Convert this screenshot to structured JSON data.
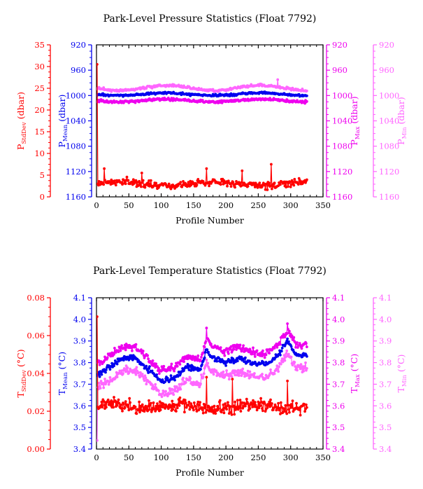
{
  "colors": {
    "stddev": "#ff0000",
    "mean": "#0000ee",
    "max": "#ee00ee",
    "min": "#ff66ff",
    "axis": "#000000"
  },
  "chart_data": [
    {
      "type": "line",
      "title": "Park-Level Pressure Statistics (Float 7792)",
      "xlabel": "Profile Number",
      "xlim": [
        0,
        350
      ],
      "xticks": [
        "0",
        "50",
        "100",
        "150",
        "200",
        "250",
        "300",
        "350"
      ],
      "axes": {
        "stddev": {
          "label_main": "P",
          "label_sub": "StdDev",
          "label_unit": " (dbar)",
          "ticks": [
            "35",
            "30",
            "25",
            "20",
            "15",
            "10",
            "5",
            "0"
          ]
        },
        "mean": {
          "label_main": "P",
          "label_sub": "Mean",
          "label_unit": " (dbar)",
          "ticks": [
            "920",
            "960",
            "1000",
            "1040",
            "1080",
            "1120",
            "1160"
          ]
        },
        "max": {
          "label_main": "P",
          "label_sub": "Max",
          "label_unit": " (dbar)",
          "ticks": [
            "920",
            "960",
            "1000",
            "1040",
            "1080",
            "1120",
            "1160"
          ]
        },
        "min": {
          "label_main": "P",
          "label_sub": "Min",
          "label_unit": " (dbar)",
          "ticks": [
            "920",
            "960",
            "1000",
            "1040",
            "1080",
            "1120",
            "1160"
          ]
        }
      },
      "ranges": {
        "stddev": [
          0,
          35
        ],
        "mean": [
          1160,
          920
        ],
        "max": [
          1160,
          920
        ],
        "min": [
          1160,
          920
        ]
      },
      "series": [
        {
          "key": "min",
          "n": 325,
          "base": 988,
          "amp": 4,
          "noise": 3,
          "first": 990,
          "spikes": [
            [
              280,
              975
            ]
          ]
        },
        {
          "key": "max",
          "n": 325,
          "base": 1008,
          "amp": 2,
          "noise": 3,
          "first": 1010,
          "spikes": []
        },
        {
          "key": "mean",
          "n": 325,
          "base": 998,
          "amp": 2,
          "noise": 2.5,
          "first": 1000,
          "spikes": []
        },
        {
          "key": "stddev",
          "n": 325,
          "base": 3,
          "amp": 0.5,
          "noise": 1.2,
          "first": 30.5,
          "spikes": [
            [
              2,
              3
            ],
            [
              12,
              6.5
            ],
            [
              70,
              5.5
            ],
            [
              170,
              6.5
            ],
            [
              225,
              6
            ],
            [
              270,
              7.5
            ]
          ]
        }
      ]
    },
    {
      "type": "line",
      "title": "Park-Level Temperature Statistics (Float 7792)",
      "xlabel": "Profile Number",
      "xlim": [
        0,
        350
      ],
      "xticks": [
        "0",
        "50",
        "100",
        "150",
        "200",
        "250",
        "300",
        "350"
      ],
      "axes": {
        "stddev": {
          "label_main": "T",
          "label_sub": "StdDev",
          "label_unit": " (°C)",
          "ticks": [
            "0.08",
            "0.06",
            "0.04",
            "0.02",
            "0.00"
          ]
        },
        "mean": {
          "label_main": "T",
          "label_sub": "Mean",
          "label_unit": " (°C)",
          "ticks": [
            "4.1",
            "4.0",
            "3.9",
            "3.8",
            "3.7",
            "3.6",
            "3.5",
            "3.4"
          ]
        },
        "max": {
          "label_main": "T",
          "label_sub": "Max",
          "label_unit": " (°C)",
          "ticks": [
            "4.1",
            "4.0",
            "3.9",
            "3.8",
            "3.7",
            "3.6",
            "3.5",
            "3.4"
          ]
        },
        "min": {
          "label_main": "T",
          "label_sub": "Min",
          "label_unit": " (°C)",
          "ticks": [
            "4.1",
            "4.0",
            "3.9",
            "3.8",
            "3.7",
            "3.6",
            "3.5",
            "3.4"
          ]
        }
      },
      "ranges": {
        "stddev": [
          0,
          0.08
        ],
        "mean": [
          3.4,
          4.1
        ],
        "max": [
          3.4,
          4.1
        ],
        "min": [
          3.4,
          4.1
        ]
      },
      "profile": {
        "x": [
          0,
          20,
          40,
          60,
          80,
          100,
          120,
          140,
          160,
          170,
          180,
          200,
          220,
          240,
          260,
          280,
          295,
          310,
          325
        ],
        "y": [
          3.74,
          3.78,
          3.82,
          3.82,
          3.77,
          3.71,
          3.73,
          3.78,
          3.76,
          3.86,
          3.82,
          3.8,
          3.82,
          3.8,
          3.79,
          3.83,
          3.9,
          3.83,
          3.84
        ]
      },
      "series": [
        {
          "key": "min",
          "n": 325,
          "offset": -0.06,
          "noise": 0.03,
          "first": 3.44,
          "spikes": []
        },
        {
          "key": "max",
          "n": 325,
          "offset": 0.05,
          "noise": 0.025,
          "first": 3.8,
          "spikes": [
            [
              170,
              3.96
            ],
            [
              295,
              3.98
            ]
          ]
        },
        {
          "key": "mean",
          "n": 325,
          "offset": 0,
          "noise": 0.02,
          "first": 3.74,
          "spikes": []
        },
        {
          "key": "stddev",
          "n": 325,
          "base": 0.0225,
          "amp": 0.001,
          "noise": 0.005,
          "first": 0.065,
          "spikes": [
            [
              1,
              0.07
            ],
            [
              170,
              0.038
            ],
            [
              210,
              0.037
            ],
            [
              295,
              0.036
            ]
          ]
        }
      ]
    }
  ]
}
